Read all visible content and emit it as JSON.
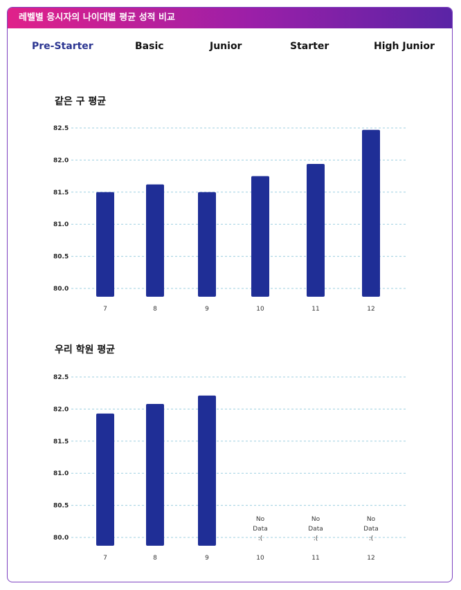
{
  "header": {
    "title": "레벨별 응시자의 나이대별 평균 성적 비교"
  },
  "tabs": [
    {
      "label": "Pre-Starter",
      "active": true
    },
    {
      "label": "Basic",
      "active": false
    },
    {
      "label": "Junior",
      "active": false
    },
    {
      "label": "Starter",
      "active": false
    },
    {
      "label": "High Junior",
      "active": false
    }
  ],
  "colors": {
    "bar": "#1f2e96",
    "grid": "#9ccfe0",
    "active_tab": "#2b3591"
  },
  "chart_data": [
    {
      "type": "bar",
      "title": "같은 구 평균",
      "categories": [
        "7",
        "8",
        "9",
        "10",
        "11",
        "12"
      ],
      "values": [
        81.5,
        81.62,
        81.5,
        81.75,
        81.94,
        82.47
      ],
      "yticks": [
        "80.0",
        "80.5",
        "81.0",
        "81.5",
        "82.0",
        "82.5"
      ],
      "ylim": [
        80.0,
        82.5
      ],
      "no_data_label": [],
      "grid": true
    },
    {
      "type": "bar",
      "title": "우리 학원 평균",
      "categories": [
        "7",
        "8",
        "9",
        "10",
        "11",
        "12"
      ],
      "values": [
        81.93,
        82.08,
        82.21,
        null,
        null,
        null
      ],
      "yticks": [
        "80.0",
        "80.5",
        "81.0",
        "81.5",
        "82.0",
        "82.5"
      ],
      "ylim": [
        80.0,
        82.5
      ],
      "no_data_label": [
        "No",
        "Data",
        ":("
      ],
      "grid": true
    }
  ]
}
